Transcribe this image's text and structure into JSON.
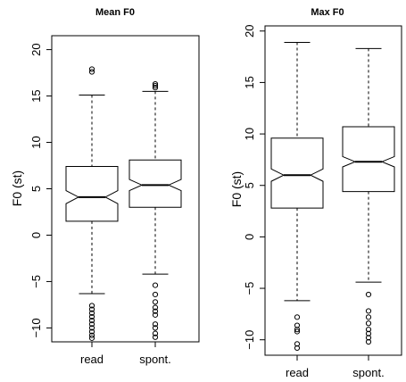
{
  "chart_data": [
    {
      "type": "boxplot",
      "title": "Mean F0",
      "ylabel": "F0 (st)",
      "xlabel": "",
      "ylim": [
        -11.5,
        21.5
      ],
      "yticks": [
        "20",
        "15",
        "10",
        "5",
        "0",
        "−5",
        "−10"
      ],
      "ytick_values": [
        20,
        15,
        10,
        5,
        0,
        -5,
        -10
      ],
      "notched": true,
      "categories": [
        "read",
        "spont."
      ],
      "boxes": [
        {
          "name": "read",
          "whisker_low": -6.3,
          "q1": 1.5,
          "median": 4.1,
          "q3": 7.4,
          "whisker_high": 15.1,
          "notch_low": 3.4,
          "notch_high": 4.8,
          "outliers": [
            17.6,
            17.9,
            -7.6,
            -8.0,
            -8.4,
            -8.8,
            -9.2,
            -9.6,
            -10.0,
            -10.4,
            -10.8,
            -11.1
          ]
        },
        {
          "name": "spont.",
          "whisker_low": -4.2,
          "q1": 3.0,
          "median": 5.4,
          "q3": 8.1,
          "whisker_high": 15.5,
          "notch_low": 4.8,
          "notch_high": 6.0,
          "outliers": [
            15.9,
            16.1,
            16.3,
            -5.4,
            -6.4,
            -7.2,
            -7.8,
            -8.2,
            -8.6,
            -9.6,
            -10.0,
            -10.6,
            -11.0
          ]
        }
      ]
    },
    {
      "type": "boxplot",
      "title": "Max F0",
      "ylabel": "F0 (st)",
      "xlabel": "",
      "ylim": [
        -11.5,
        20.5
      ],
      "yticks": [
        "20",
        "15",
        "10",
        "5",
        "0",
        "−5",
        "−10"
      ],
      "ytick_values": [
        20,
        15,
        10,
        5,
        0,
        -5,
        -10
      ],
      "notched": true,
      "categories": [
        "read",
        "spont."
      ],
      "boxes": [
        {
          "name": "read",
          "whisker_low": -6.2,
          "q1": 2.8,
          "median": 6.0,
          "q3": 9.6,
          "whisker_high": 18.9,
          "notch_low": 5.4,
          "notch_high": 6.6,
          "outliers": [
            -7.8,
            -8.6,
            -9.0,
            -9.2,
            -10.4,
            -10.8
          ]
        },
        {
          "name": "spont.",
          "whisker_low": -4.4,
          "q1": 4.4,
          "median": 7.3,
          "q3": 10.7,
          "whisker_high": 18.3,
          "notch_low": 6.8,
          "notch_high": 7.8,
          "outliers": [
            -5.6,
            -7.2,
            -7.8,
            -8.4,
            -9.0,
            -9.4,
            -9.8,
            -10.2
          ]
        }
      ]
    }
  ]
}
